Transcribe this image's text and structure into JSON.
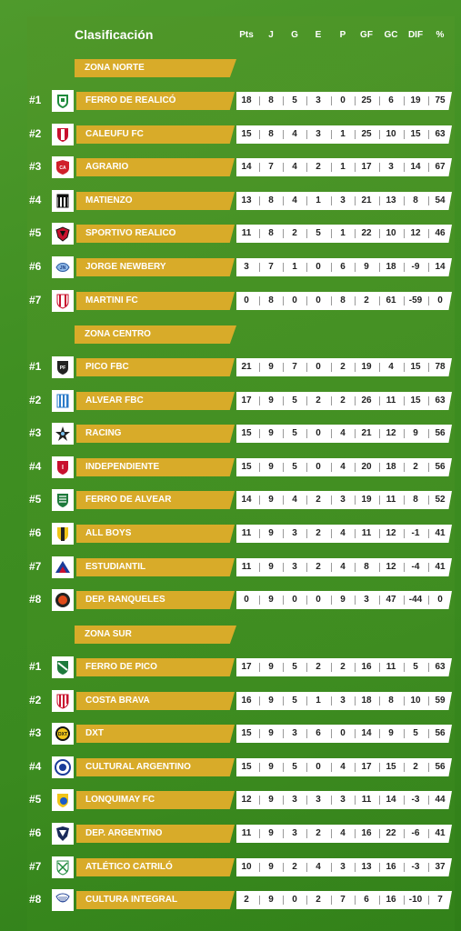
{
  "header": {
    "title": "Clasificación",
    "columns": [
      "Pts",
      "J",
      "G",
      "E",
      "P",
      "GF",
      "GC",
      "DIF",
      "%"
    ]
  },
  "zones": [
    {
      "name": "ZONA NORTE",
      "teams": [
        {
          "rank": "#1",
          "name": "FERRO DE REALICÓ",
          "icon": "ferro-realico-crest",
          "stats": [
            "18",
            "8",
            "5",
            "3",
            "0",
            "25",
            "6",
            "19",
            "75"
          ]
        },
        {
          "rank": "#2",
          "name": "CALEUFU FC",
          "icon": "caleufu-crest",
          "stats": [
            "15",
            "8",
            "4",
            "3",
            "1",
            "25",
            "10",
            "15",
            "63"
          ]
        },
        {
          "rank": "#3",
          "name": "AGRARIO",
          "icon": "agrario-crest",
          "stats": [
            "14",
            "7",
            "4",
            "2",
            "1",
            "17",
            "3",
            "14",
            "67"
          ]
        },
        {
          "rank": "#4",
          "name": "MATIENZO",
          "icon": "matienzo-crest",
          "stats": [
            "13",
            "8",
            "4",
            "1",
            "3",
            "21",
            "13",
            "8",
            "54"
          ]
        },
        {
          "rank": "#5",
          "name": "SPORTIVO REALICO",
          "icon": "sportivo-realico-crest",
          "stats": [
            "11",
            "8",
            "2",
            "5",
            "1",
            "22",
            "10",
            "12",
            "46"
          ]
        },
        {
          "rank": "#6",
          "name": "JORGE NEWBERY",
          "icon": "jorge-newbery-crest",
          "stats": [
            "3",
            "7",
            "1",
            "0",
            "6",
            "9",
            "18",
            "-9",
            "14"
          ]
        },
        {
          "rank": "#7",
          "name": "MARTINI FC",
          "icon": "martini-crest",
          "stats": [
            "0",
            "8",
            "0",
            "0",
            "8",
            "2",
            "61",
            "-59",
            "0"
          ]
        }
      ]
    },
    {
      "name": "ZONA CENTRO",
      "teams": [
        {
          "rank": "#1",
          "name": "PICO FBC",
          "icon": "pico-fbc-crest",
          "stats": [
            "21",
            "9",
            "7",
            "0",
            "2",
            "19",
            "4",
            "15",
            "78"
          ]
        },
        {
          "rank": "#2",
          "name": "ALVEAR FBC",
          "icon": "alvear-fbc-crest",
          "stats": [
            "17",
            "9",
            "5",
            "2",
            "2",
            "26",
            "11",
            "15",
            "63"
          ]
        },
        {
          "rank": "#3",
          "name": "RACING",
          "icon": "racing-crest",
          "stats": [
            "15",
            "9",
            "5",
            "0",
            "4",
            "21",
            "12",
            "9",
            "56"
          ]
        },
        {
          "rank": "#4",
          "name": "INDEPENDIENTE",
          "icon": "independiente-crest",
          "stats": [
            "15",
            "9",
            "5",
            "0",
            "4",
            "20",
            "18",
            "2",
            "56"
          ]
        },
        {
          "rank": "#5",
          "name": "FERRO DE ALVEAR",
          "icon": "ferro-alvear-crest",
          "stats": [
            "14",
            "9",
            "4",
            "2",
            "3",
            "19",
            "11",
            "8",
            "52"
          ]
        },
        {
          "rank": "#6",
          "name": "ALL BOYS",
          "icon": "all-boys-crest",
          "stats": [
            "11",
            "9",
            "3",
            "2",
            "4",
            "11",
            "12",
            "-1",
            "41"
          ]
        },
        {
          "rank": "#7",
          "name": "ESTUDIANTIL",
          "icon": "estudiantil-crest",
          "stats": [
            "11",
            "9",
            "3",
            "2",
            "4",
            "8",
            "12",
            "-4",
            "41"
          ]
        },
        {
          "rank": "#8",
          "name": "DEP. RANQUELES",
          "icon": "ranqueles-crest",
          "stats": [
            "0",
            "9",
            "0",
            "0",
            "9",
            "3",
            "47",
            "-44",
            "0"
          ]
        }
      ]
    },
    {
      "name": "ZONA SUR",
      "teams": [
        {
          "rank": "#1",
          "name": "FERRO DE PICO",
          "icon": "ferro-pico-crest",
          "stats": [
            "17",
            "9",
            "5",
            "2",
            "2",
            "16",
            "11",
            "5",
            "63"
          ]
        },
        {
          "rank": "#2",
          "name": "COSTA BRAVA",
          "icon": "costa-brava-crest",
          "stats": [
            "16",
            "9",
            "5",
            "1",
            "3",
            "18",
            "8",
            "10",
            "59"
          ]
        },
        {
          "rank": "#3",
          "name": "DXT",
          "icon": "dxt-crest",
          "stats": [
            "15",
            "9",
            "3",
            "6",
            "0",
            "14",
            "9",
            "5",
            "56"
          ]
        },
        {
          "rank": "#4",
          "name": "CULTURAL ARGENTINO",
          "icon": "cultural-argentino-crest",
          "stats": [
            "15",
            "9",
            "5",
            "0",
            "4",
            "17",
            "15",
            "2",
            "56"
          ]
        },
        {
          "rank": "#5",
          "name": "LONQUIMAY FC",
          "icon": "lonquimay-crest",
          "stats": [
            "12",
            "9",
            "3",
            "3",
            "3",
            "11",
            "14",
            "-3",
            "44"
          ]
        },
        {
          "rank": "#6",
          "name": "DEP. ARGENTINO",
          "icon": "dep-argentino-crest",
          "stats": [
            "11",
            "9",
            "3",
            "2",
            "4",
            "16",
            "22",
            "-6",
            "41"
          ]
        },
        {
          "rank": "#7",
          "name": "ATLÉTICO CATRILÓ",
          "icon": "catrilo-crest",
          "stats": [
            "10",
            "9",
            "2",
            "4",
            "3",
            "13",
            "16",
            "-3",
            "37"
          ]
        },
        {
          "rank": "#8",
          "name": "CULTURA INTEGRAL",
          "icon": "cultura-integral-crest",
          "stats": [
            "2",
            "9",
            "0",
            "2",
            "7",
            "6",
            "16",
            "-10",
            "7"
          ]
        }
      ]
    }
  ],
  "colors": {
    "accent": "#d8ab29",
    "background": "#3f8f22",
    "stats_bg": "#ffffff"
  }
}
